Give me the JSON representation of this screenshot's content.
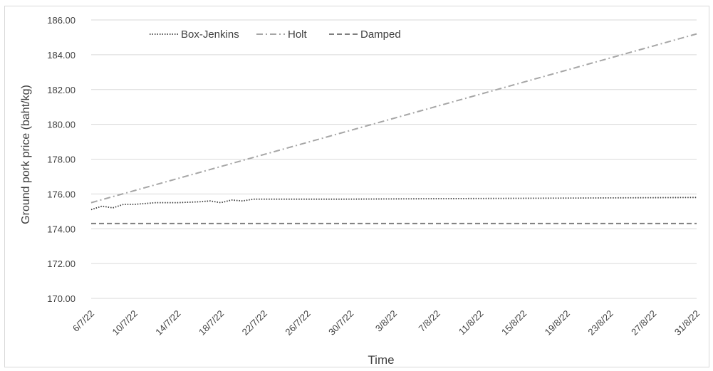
{
  "chart_data": {
    "type": "line",
    "title": "",
    "xlabel": "Time",
    "ylabel": "Ground pork price (baht/kg)",
    "ylim": [
      170,
      186
    ],
    "yticks": [
      "170.00",
      "172.00",
      "174.00",
      "176.00",
      "178.00",
      "180.00",
      "182.00",
      "184.00",
      "186.00"
    ],
    "x_start": "6/7/22",
    "x_end": "31/8/22",
    "xtick_labels": [
      "6/7/22",
      "10/7/22",
      "14/7/22",
      "18/7/22",
      "22/7/22",
      "26/7/22",
      "30/7/22",
      "3/8/22",
      "7/8/22",
      "11/8/22",
      "15/8/22",
      "19/8/22",
      "23/8/22",
      "27/8/22",
      "31/8/22"
    ],
    "grid": "horizontal",
    "legend_position": "top-left",
    "series": [
      {
        "name": "Box-Jenkins",
        "style": "dotted",
        "color": "#404040",
        "x": [
          "6/7/22",
          "7/7/22",
          "8/7/22",
          "9/7/22",
          "10/7/22",
          "11/7/22",
          "12/7/22",
          "14/7/22",
          "16/7/22",
          "17/7/22",
          "18/7/22",
          "19/7/22",
          "20/7/22",
          "21/7/22",
          "29/7/22",
          "31/8/22"
        ],
        "values": [
          175.1,
          175.3,
          175.2,
          175.4,
          175.4,
          175.45,
          175.5,
          175.5,
          175.55,
          175.6,
          175.5,
          175.65,
          175.6,
          175.7,
          175.7,
          175.8
        ]
      },
      {
        "name": "Holt",
        "style": "dash-dot",
        "color": "#a6a6a6",
        "x": [
          "6/7/22",
          "31/8/22"
        ],
        "values": [
          175.5,
          185.2
        ]
      },
      {
        "name": "Damped",
        "style": "dashed",
        "color": "#7f7f7f",
        "x": [
          "6/7/22",
          "31/8/22"
        ],
        "values": [
          174.3,
          174.3
        ]
      }
    ]
  }
}
